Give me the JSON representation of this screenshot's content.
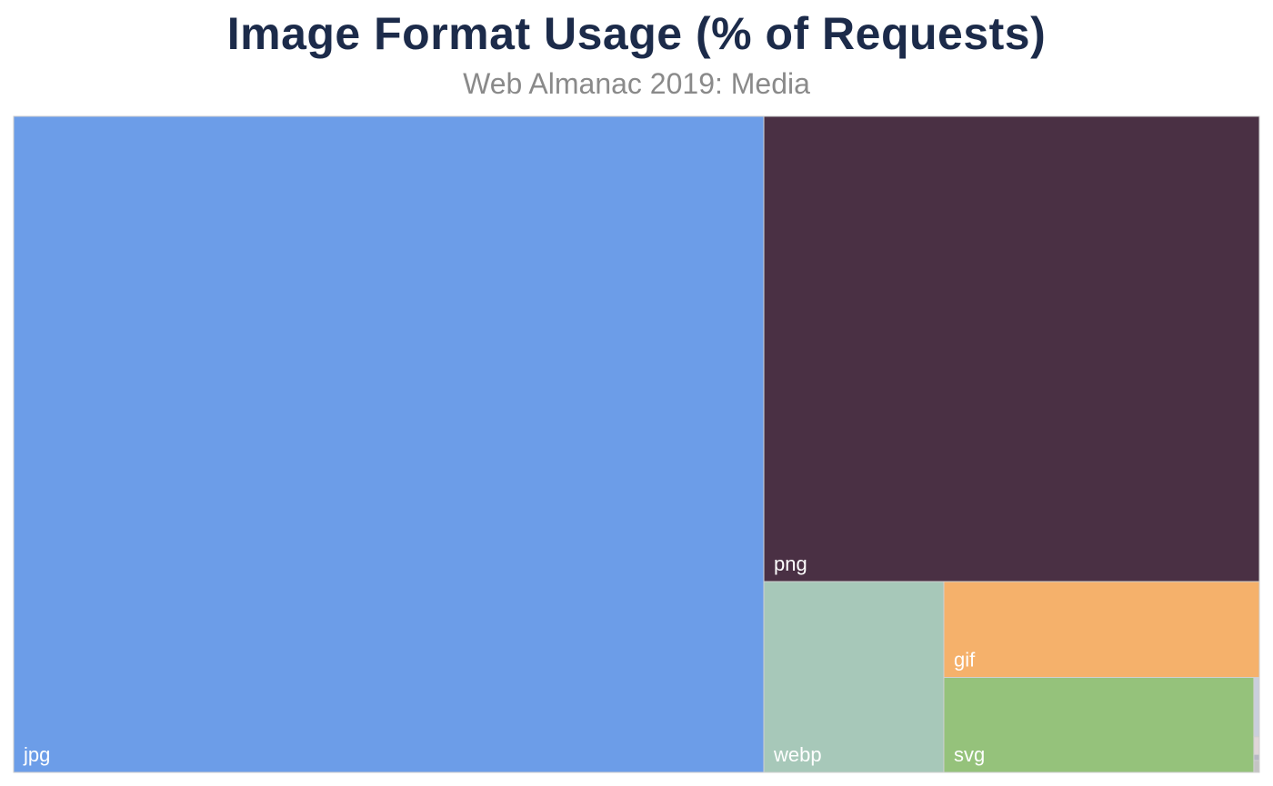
{
  "chart_data": {
    "type": "treemap",
    "title": "Image Format Usage (% of Requests)",
    "subtitle": "Web Almanac 2019: Media",
    "unit": "% of requests",
    "cells": [
      {
        "label": "jpg",
        "value": 60.2,
        "color": "#6c9de8"
      },
      {
        "label": "png",
        "value": 28.2,
        "color": "#4a3044"
      },
      {
        "label": "webp",
        "value": 4.2,
        "color": "#a7c8b9"
      },
      {
        "label": "gif",
        "value": 3.7,
        "color": "#f5b16b"
      },
      {
        "label": "svg",
        "value": 3.6,
        "color": "#95c27b"
      },
      {
        "label": "",
        "value": 0.04,
        "color": "#c9cfdc"
      },
      {
        "label": "",
        "value": 0.012,
        "color": "#e0d6d8"
      },
      {
        "label": "",
        "value": 0.004,
        "color": "#b8b8c4"
      },
      {
        "label": "",
        "value": 0.008,
        "color": "#c4c4c4"
      }
    ]
  }
}
